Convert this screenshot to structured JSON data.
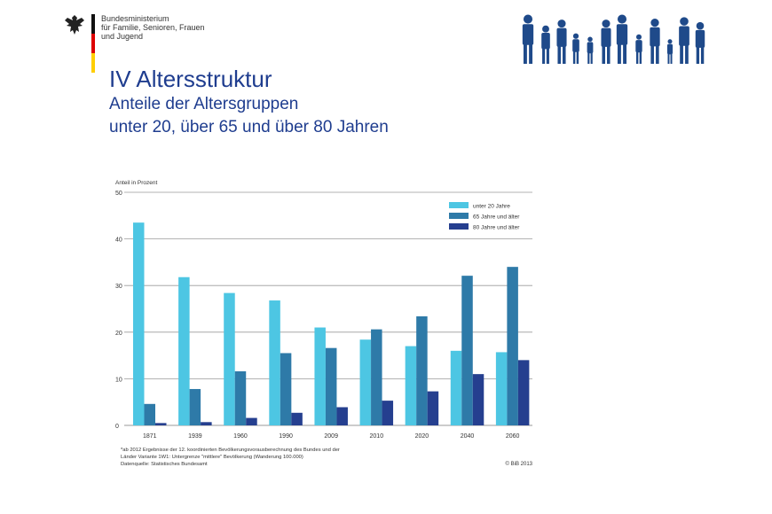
{
  "header": {
    "ministry_lines": [
      "Bundesministerium",
      "für Familie, Senioren, Frauen",
      "und Jugend"
    ],
    "title": "IV Altersstruktur",
    "subtitle_line1": "Anteile der Altersgruppen",
    "subtitle_line2": "unter 20, über 65 und über 80 Jahren"
  },
  "colors": {
    "title": "#1f3d8f",
    "under20": "#4dc6e3",
    "over65": "#2e7aa8",
    "over80": "#253f8f",
    "silhouettes": "#1f4a8a"
  },
  "chart_data": {
    "type": "bar",
    "ylabel": "Anteil in Prozent",
    "ylim": [
      0,
      50
    ],
    "yticks": [
      0,
      10,
      20,
      30,
      40,
      50
    ],
    "grid": true,
    "legend_position": "top-right",
    "categories": [
      "1871",
      "1939",
      "1960",
      "1990",
      "2009",
      "2010",
      "2020",
      "2040",
      "2060"
    ],
    "series": [
      {
        "name": "unter 20 Jahre",
        "values": [
          43.5,
          31.8,
          28.4,
          26.8,
          21.0,
          18.4,
          17.0,
          16.0,
          15.7
        ]
      },
      {
        "name": "65 Jahre und älter",
        "values": [
          4.6,
          7.8,
          11.6,
          15.5,
          16.6,
          20.6,
          23.4,
          32.1,
          34.0
        ]
      },
      {
        "name": "80 Jahre und älter",
        "values": [
          0.5,
          0.7,
          1.6,
          2.7,
          3.9,
          5.3,
          7.3,
          11.0,
          14.0
        ]
      }
    ],
    "footnote_lines": [
      "*ab 2012 Ergebnisse der 12. koordinierten Bevölkerungsvorausberechnung des Bundes und der",
      "Länder Variante 1W1: Untergrenze \"mittlere\" Bevölkerung (Wanderung 100.000)",
      "Datenquelle: Statistisches Bundesamt"
    ],
    "credit": "© BiB 2013"
  }
}
